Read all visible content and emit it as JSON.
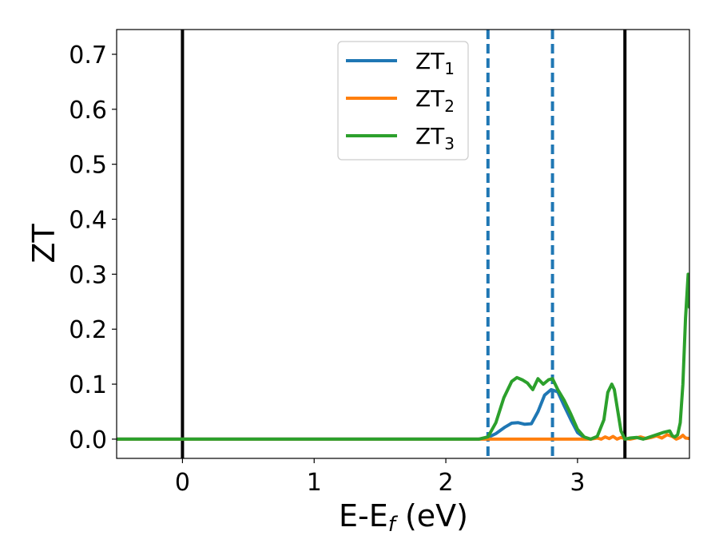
{
  "chart_data": {
    "type": "line",
    "title": "",
    "xlabel": {
      "main": "E-E",
      "sub": "f",
      "tail": " (eV)"
    },
    "ylabel": "ZT",
    "xlim": [
      -0.5,
      3.85
    ],
    "ylim": [
      -0.035,
      0.745
    ],
    "xticks": [
      0,
      1,
      2,
      3
    ],
    "yticks": [
      0.0,
      0.1,
      0.2,
      0.3,
      0.4,
      0.5,
      0.6,
      0.7
    ],
    "xtick_labels": [
      "0",
      "1",
      "2",
      "3"
    ],
    "ytick_labels": [
      "0.0",
      "0.1",
      "0.2",
      "0.3",
      "0.4",
      "0.5",
      "0.6",
      "0.7"
    ],
    "grid": false,
    "legend_placement": "top-center",
    "vlines": [
      {
        "x": 0.0,
        "style": "solid",
        "color": "#000000"
      },
      {
        "x": 2.32,
        "style": "dashed",
        "color": "#1f77b4"
      },
      {
        "x": 2.81,
        "style": "dashed",
        "color": "#1f77b4"
      },
      {
        "x": 3.36,
        "style": "solid",
        "color": "#000000"
      }
    ],
    "series": [
      {
        "name": "ZT",
        "sub": "1",
        "color": "#1f77b4",
        "x": [
          -0.5,
          2.25,
          2.32,
          2.38,
          2.45,
          2.5,
          2.55,
          2.6,
          2.65,
          2.7,
          2.75,
          2.8,
          2.85,
          2.9,
          2.95,
          3.0,
          3.05,
          3.1
        ],
        "y": [
          0,
          0,
          0.003,
          0.01,
          0.022,
          0.029,
          0.03,
          0.027,
          0.028,
          0.05,
          0.08,
          0.09,
          0.086,
          0.06,
          0.035,
          0.012,
          0.003,
          0
        ]
      },
      {
        "name": "ZT",
        "sub": "2",
        "color": "#ff7f0e",
        "x": [
          -0.5,
          3.1,
          3.15,
          3.18,
          3.21,
          3.24,
          3.27,
          3.3,
          3.33,
          3.36,
          3.4,
          3.44,
          3.48,
          3.52,
          3.56,
          3.6,
          3.64,
          3.68,
          3.72,
          3.75,
          3.78,
          3.8,
          3.82,
          3.85
        ],
        "y": [
          0,
          0,
          0.002,
          0.0,
          0.004,
          0.001,
          0.005,
          0.0,
          0.003,
          0.001,
          0.0,
          0.002,
          0.004,
          0.001,
          0.003,
          0.006,
          0.002,
          0.008,
          0.005,
          0.0,
          0.003,
          0.007,
          0.002,
          0.001
        ]
      },
      {
        "name": "ZT",
        "sub": "3",
        "color": "#2ca02c",
        "x": [
          -0.5,
          2.25,
          2.32,
          2.38,
          2.44,
          2.5,
          2.54,
          2.58,
          2.62,
          2.66,
          2.7,
          2.74,
          2.78,
          2.81,
          2.85,
          2.9,
          2.95,
          3.0,
          3.05,
          3.1,
          3.15,
          3.2,
          3.23,
          3.26,
          3.28,
          3.3,
          3.33,
          3.36,
          3.4,
          3.45,
          3.5,
          3.55,
          3.6,
          3.65,
          3.7,
          3.72,
          3.74,
          3.76,
          3.78,
          3.8,
          3.82,
          3.84,
          3.85
        ],
        "y": [
          0,
          0,
          0.004,
          0.03,
          0.075,
          0.105,
          0.112,
          0.108,
          0.102,
          0.09,
          0.11,
          0.1,
          0.108,
          0.11,
          0.09,
          0.07,
          0.045,
          0.018,
          0.004,
          0.0,
          0.005,
          0.035,
          0.085,
          0.1,
          0.09,
          0.06,
          0.015,
          0.0,
          0.002,
          0.003,
          0.0,
          0.004,
          0.008,
          0.012,
          0.015,
          0.006,
          0.004,
          0.008,
          0.03,
          0.1,
          0.22,
          0.3,
          0.24
        ]
      }
    ]
  }
}
